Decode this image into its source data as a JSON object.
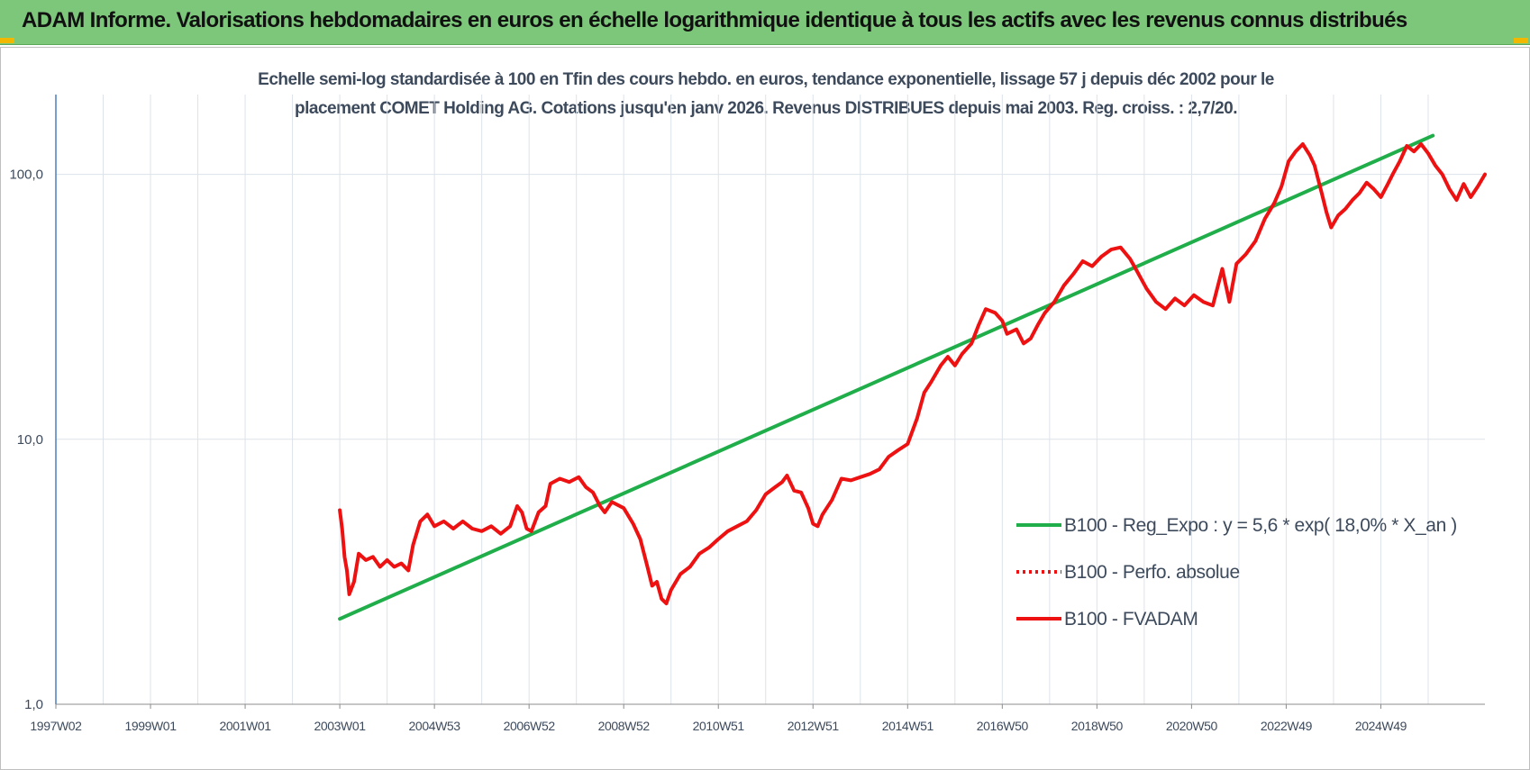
{
  "banner": {
    "title": "ADAM Informe. Valorisations hebdomadaires en euros en échelle logarithmique identique à tous les actifs avec les revenus connus distribués"
  },
  "colors": {
    "banner_bg": "#7cc77a",
    "corner_accent": "#f2b800",
    "trend": "#1fae4a",
    "fvadam": "#ee1111",
    "perfo": "#ee1111",
    "grid": "#dde3ea",
    "axis_text": "#3d4a5c"
  },
  "chart_data": {
    "type": "line",
    "title_line1": "Echelle semi-log standardisée à 100 en Tfin des cours hebdo. en euros, tendance exponentielle, lissage 57 j depuis déc 2002 pour le",
    "title_line2": "placement COMET Holding AG. Cotations jusqu'en janv 2026. Revenus DISTRIBUES depuis mai 2003. Reg. croiss. : 2,7/20.",
    "y_scale": "log",
    "ylim": [
      1,
      200
    ],
    "y_ticks": [
      {
        "value": 1,
        "label": "1,0"
      },
      {
        "value": 10,
        "label": "10,0"
      },
      {
        "value": 100,
        "label": "100,0"
      }
    ],
    "x_range": [
      1997.0,
      2026.1
    ],
    "x_ticks": [
      {
        "value": 1997.0,
        "label": "1997W02"
      },
      {
        "value": 1999.0,
        "label": "1999W01"
      },
      {
        "value": 2001.0,
        "label": "2001W01"
      },
      {
        "value": 2003.0,
        "label": "2003W01"
      },
      {
        "value": 2005.0,
        "label": "2004W53"
      },
      {
        "value": 2007.0,
        "label": "2006W52"
      },
      {
        "value": 2009.0,
        "label": "2008W52"
      },
      {
        "value": 2011.0,
        "label": "2010W51"
      },
      {
        "value": 2013.0,
        "label": "2012W51"
      },
      {
        "value": 2015.0,
        "label": "2014W51"
      },
      {
        "value": 2017.0,
        "label": "2016W50"
      },
      {
        "value": 2019.0,
        "label": "2018W50"
      },
      {
        "value": 2021.0,
        "label": "2020W50"
      },
      {
        "value": 2023.0,
        "label": "2022W49"
      },
      {
        "value": 2025.0,
        "label": "2024W49"
      }
    ],
    "x_gridlines": [
      1998.0,
      2000.0,
      2002.0,
      2004.0,
      2006.0,
      2008.0,
      2010.0,
      2012.0,
      2014.0,
      2016.0,
      2018.0,
      2020.0,
      2022.0,
      2024.0,
      2026.0
    ],
    "legend_position": "bottom-right",
    "series": [
      {
        "name": "B100 - Reg_Expo : y = 5,6 * exp( 18,0% *  X_an )",
        "style": "solid",
        "color": "#1fae4a",
        "points": [
          [
            2003.0,
            2.1
          ],
          [
            2026.1,
            140
          ]
        ]
      },
      {
        "name": "B100 - Perfo. absolue",
        "style": "dotted",
        "color": "#ee1111",
        "points": []
      },
      {
        "name": "B100 - FVADAM",
        "style": "solid",
        "color": "#ee1111",
        "points": [
          [
            2003.0,
            5.4
          ],
          [
            2003.05,
            4.6
          ],
          [
            2003.1,
            3.6
          ],
          [
            2003.15,
            3.2
          ],
          [
            2003.2,
            2.6
          ],
          [
            2003.3,
            2.9
          ],
          [
            2003.4,
            3.7
          ],
          [
            2003.55,
            3.5
          ],
          [
            2003.7,
            3.6
          ],
          [
            2003.85,
            3.3
          ],
          [
            2004.0,
            3.5
          ],
          [
            2004.15,
            3.3
          ],
          [
            2004.3,
            3.4
          ],
          [
            2004.45,
            3.2
          ],
          [
            2004.55,
            4.0
          ],
          [
            2004.7,
            4.9
          ],
          [
            2004.85,
            5.2
          ],
          [
            2005.0,
            4.7
          ],
          [
            2005.2,
            4.9
          ],
          [
            2005.4,
            4.6
          ],
          [
            2005.6,
            4.9
          ],
          [
            2005.8,
            4.6
          ],
          [
            2006.0,
            4.5
          ],
          [
            2006.2,
            4.7
          ],
          [
            2006.4,
            4.4
          ],
          [
            2006.6,
            4.7
          ],
          [
            2006.75,
            5.6
          ],
          [
            2006.85,
            5.3
          ],
          [
            2006.95,
            4.6
          ],
          [
            2007.05,
            4.5
          ],
          [
            2007.2,
            5.3
          ],
          [
            2007.35,
            5.6
          ],
          [
            2007.45,
            6.8
          ],
          [
            2007.65,
            7.1
          ],
          [
            2007.85,
            6.9
          ],
          [
            2008.05,
            7.2
          ],
          [
            2008.2,
            6.6
          ],
          [
            2008.35,
            6.3
          ],
          [
            2008.5,
            5.6
          ],
          [
            2008.6,
            5.3
          ],
          [
            2008.75,
            5.8
          ],
          [
            2009.0,
            5.5
          ],
          [
            2009.2,
            4.8
          ],
          [
            2009.35,
            4.2
          ],
          [
            2009.5,
            3.3
          ],
          [
            2009.6,
            2.8
          ],
          [
            2009.7,
            2.9
          ],
          [
            2009.8,
            2.5
          ],
          [
            2009.9,
            2.4
          ],
          [
            2010.0,
            2.7
          ],
          [
            2010.2,
            3.1
          ],
          [
            2010.4,
            3.3
          ],
          [
            2010.6,
            3.7
          ],
          [
            2010.8,
            3.9
          ],
          [
            2011.0,
            4.2
          ],
          [
            2011.2,
            4.5
          ],
          [
            2011.4,
            4.7
          ],
          [
            2011.6,
            4.9
          ],
          [
            2011.8,
            5.4
          ],
          [
            2012.0,
            6.2
          ],
          [
            2012.2,
            6.6
          ],
          [
            2012.35,
            6.9
          ],
          [
            2012.45,
            7.3
          ],
          [
            2012.6,
            6.4
          ],
          [
            2012.75,
            6.3
          ],
          [
            2012.9,
            5.5
          ],
          [
            2013.0,
            4.8
          ],
          [
            2013.1,
            4.7
          ],
          [
            2013.2,
            5.2
          ],
          [
            2013.4,
            5.9
          ],
          [
            2013.6,
            7.1
          ],
          [
            2013.8,
            7.0
          ],
          [
            2014.0,
            7.2
          ],
          [
            2014.2,
            7.4
          ],
          [
            2014.4,
            7.7
          ],
          [
            2014.6,
            8.6
          ],
          [
            2014.8,
            9.1
          ],
          [
            2015.0,
            9.6
          ],
          [
            2015.2,
            12.0
          ],
          [
            2015.35,
            15.0
          ],
          [
            2015.5,
            16.5
          ],
          [
            2015.7,
            19.0
          ],
          [
            2015.85,
            20.5
          ],
          [
            2016.0,
            19.0
          ],
          [
            2016.15,
            21.0
          ],
          [
            2016.35,
            23.0
          ],
          [
            2016.5,
            27.0
          ],
          [
            2016.65,
            31.0
          ],
          [
            2016.85,
            30.0
          ],
          [
            2017.0,
            28.0
          ],
          [
            2017.1,
            25.0
          ],
          [
            2017.3,
            26.0
          ],
          [
            2017.45,
            23.0
          ],
          [
            2017.6,
            24.0
          ],
          [
            2017.75,
            27.0
          ],
          [
            2017.9,
            30.0
          ],
          [
            2018.1,
            33.0
          ],
          [
            2018.3,
            38.0
          ],
          [
            2018.5,
            42.0
          ],
          [
            2018.7,
            47.0
          ],
          [
            2018.9,
            45.0
          ],
          [
            2019.1,
            49.0
          ],
          [
            2019.3,
            52.0
          ],
          [
            2019.5,
            53.0
          ],
          [
            2019.7,
            48.0
          ],
          [
            2019.85,
            43.0
          ],
          [
            2020.05,
            37.0
          ],
          [
            2020.25,
            33.0
          ],
          [
            2020.45,
            31.0
          ],
          [
            2020.65,
            34.0
          ],
          [
            2020.85,
            32.0
          ],
          [
            2021.05,
            35.0
          ],
          [
            2021.25,
            33.0
          ],
          [
            2021.45,
            32.0
          ],
          [
            2021.65,
            44.0
          ],
          [
            2021.8,
            33.0
          ],
          [
            2021.95,
            46.0
          ],
          [
            2022.15,
            50.0
          ],
          [
            2022.35,
            56.0
          ],
          [
            2022.55,
            68.0
          ],
          [
            2022.75,
            78.0
          ],
          [
            2022.9,
            90.0
          ],
          [
            2023.05,
            112.0
          ],
          [
            2023.2,
            122.0
          ],
          [
            2023.35,
            130.0
          ],
          [
            2023.5,
            118.0
          ],
          [
            2023.6,
            108.0
          ],
          [
            2023.75,
            85.0
          ],
          [
            2023.85,
            72.0
          ],
          [
            2023.95,
            63.0
          ],
          [
            2024.1,
            70.0
          ],
          [
            2024.25,
            74.0
          ],
          [
            2024.4,
            80.0
          ],
          [
            2024.55,
            85.0
          ],
          [
            2024.7,
            93.0
          ],
          [
            2024.85,
            88.0
          ],
          [
            2025.0,
            82.0
          ],
          [
            2025.15,
            92.0
          ],
          [
            2025.25,
            100.0
          ],
          [
            2025.4,
            112.0
          ],
          [
            2025.55,
            128.0
          ],
          [
            2025.7,
            122.0
          ],
          [
            2025.85,
            130.0
          ],
          [
            2026.0,
            120.0
          ],
          [
            2026.15,
            108.0
          ],
          [
            2026.3,
            100.0
          ],
          [
            2026.45,
            88.0
          ],
          [
            2026.6,
            80.0
          ],
          [
            2026.75,
            92.0
          ],
          [
            2026.9,
            82.0
          ],
          [
            2027.05,
            90.0
          ],
          [
            2027.2,
            100.0
          ]
        ]
      }
    ]
  }
}
